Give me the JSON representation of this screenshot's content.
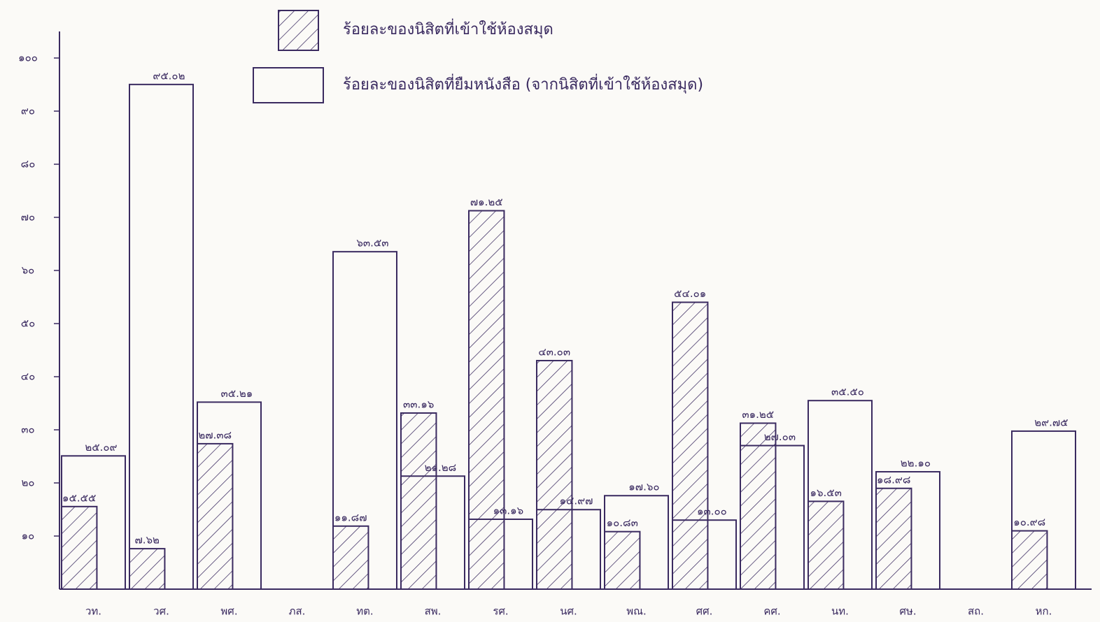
{
  "chart_data": {
    "type": "bar",
    "categories": [
      "วท.",
      "วศ.",
      "พศ.",
      "ภส.",
      "ทต.",
      "สพ.",
      "รศ.",
      "นศ.",
      "พณ.",
      "ศศ.",
      "คศ.",
      "นท.",
      "ศษ.",
      "สถ.",
      "หก."
    ],
    "series": [
      {
        "name": "ร้อยละของนิสิตที่เข้าใช้ห้องสมุด",
        "hatch": true,
        "color": "#3a2a60",
        "values": [
          15.55,
          7.62,
          27.38,
          null,
          11.87,
          33.16,
          71.25,
          43.03,
          10.83,
          54.01,
          31.25,
          16.53,
          18.98,
          null,
          10.98
        ],
        "value_labels": [
          "๑๕.๕๕",
          "๗.๖๒",
          "๒๗.๓๘",
          null,
          "๑๑.๘๗",
          "๓๓.๑๖",
          "๗๑.๒๕",
          "๔๓.๐๓",
          "๑๐.๘๓",
          "๕๔.๐๑",
          "๓๑.๒๕",
          "๑๖.๕๓",
          "๑๘.๙๘",
          null,
          "๑๐.๙๘"
        ]
      },
      {
        "name": "ร้อยละของนิสิตที่ยืมหนังสือ (จากนิสิตที่เข้าใช้ห้องสมุด)",
        "hatch": false,
        "color": "#3a2a60",
        "values": [
          25.09,
          95.02,
          35.21,
          null,
          63.53,
          21.28,
          13.16,
          14.97,
          17.6,
          13.0,
          27.03,
          35.5,
          22.1,
          null,
          29.75
        ],
        "value_labels": [
          "๒๕.๐๙",
          "๙๕.๐๒",
          "๓๕.๒๑",
          null,
          "๖๓.๕๓",
          "๒๑.๒๘",
          "๑๓.๑๖",
          "๑๔.๙๗",
          "๑๗.๖๐",
          "๑๓.๐๐",
          "๒๗.๐๓",
          "๓๕.๕๐",
          "๒๒.๑๐",
          null,
          "๒๙.๗๕"
        ]
      }
    ],
    "ylim": [
      0,
      105
    ],
    "yticks": [
      {
        "value": 10,
        "label": "๑๐"
      },
      {
        "value": 20,
        "label": "๒๐"
      },
      {
        "value": 30,
        "label": "๓๐"
      },
      {
        "value": 40,
        "label": "๔๐"
      },
      {
        "value": 50,
        "label": "๕๐"
      },
      {
        "value": 60,
        "label": "๖๐"
      },
      {
        "value": 70,
        "label": "๗๐"
      },
      {
        "value": 80,
        "label": "๘๐"
      },
      {
        "value": 90,
        "label": "๙๐"
      },
      {
        "value": 100,
        "label": "๑๐๐"
      }
    ]
  }
}
